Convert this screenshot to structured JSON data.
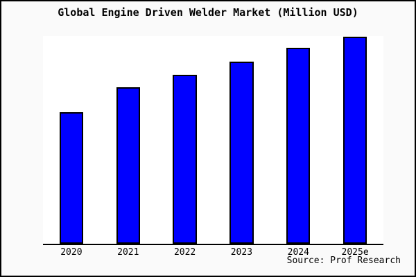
{
  "title": "Global Engine Driven Welder Market (Million USD)",
  "source_note": "Source: Prof Research",
  "colors": {
    "figure_background": "#FAFAFA",
    "plot_background": "#FFFFFF",
    "frame_border": "#000000",
    "axis_line": "#000000",
    "bar_fill": "#0000FF",
    "bar_border": "#000000",
    "text": "#000000"
  },
  "chart_data": {
    "type": "bar",
    "title": "Global Engine Driven Welder Market (Million USD)",
    "unit": "Million USD",
    "categories": [
      "2020",
      "2021",
      "2022",
      "2023",
      "2024",
      "2025e"
    ],
    "values": [
      63.2,
      75.2,
      81.5,
      87.8,
      94.2,
      99.7
    ],
    "values_note": "no numeric y-axis shown in chart; values are bar heights as percent of plot height",
    "xlabel": "",
    "ylabel": "",
    "y_axis_labels_visible": false,
    "gridlines": false,
    "legend_position": "none",
    "bar_width_frac": 0.42,
    "bar_color": "#0000FF",
    "source_note": "Source: Prof Research"
  }
}
